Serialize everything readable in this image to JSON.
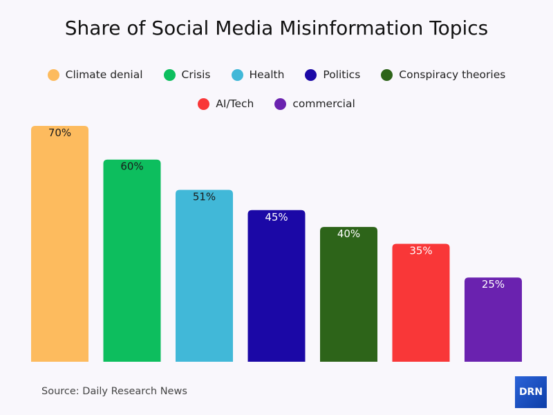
{
  "chart_data": {
    "type": "bar",
    "title": "Share of Social Media Misinformation Topics",
    "categories": [
      "Climate denial",
      "Crisis",
      "Health",
      "Politics",
      "Conspiracy theories",
      "AI/Tech",
      "commercial"
    ],
    "values": [
      70,
      60,
      51,
      45,
      40,
      35,
      25
    ],
    "labels": [
      "70%",
      "60%",
      "51%",
      "45%",
      "40%",
      "35%",
      "25%"
    ],
    "colors": [
      "#fdbb5e",
      "#0dbe5e",
      "#41b8d8",
      "#1b08a6",
      "#2d6419",
      "#f93738",
      "#6a22af"
    ],
    "label_colors": [
      "#1a1a1a",
      "#1a1a1a",
      "#1a1a1a",
      "#ffffff",
      "#ffffff",
      "#ffffff",
      "#ffffff"
    ],
    "ylim": [
      0,
      70
    ],
    "grid": false,
    "legend_position": "top",
    "xlabel": "",
    "ylabel": ""
  },
  "footer": {
    "source": "Source: Daily Research News",
    "logo": "DRN"
  }
}
